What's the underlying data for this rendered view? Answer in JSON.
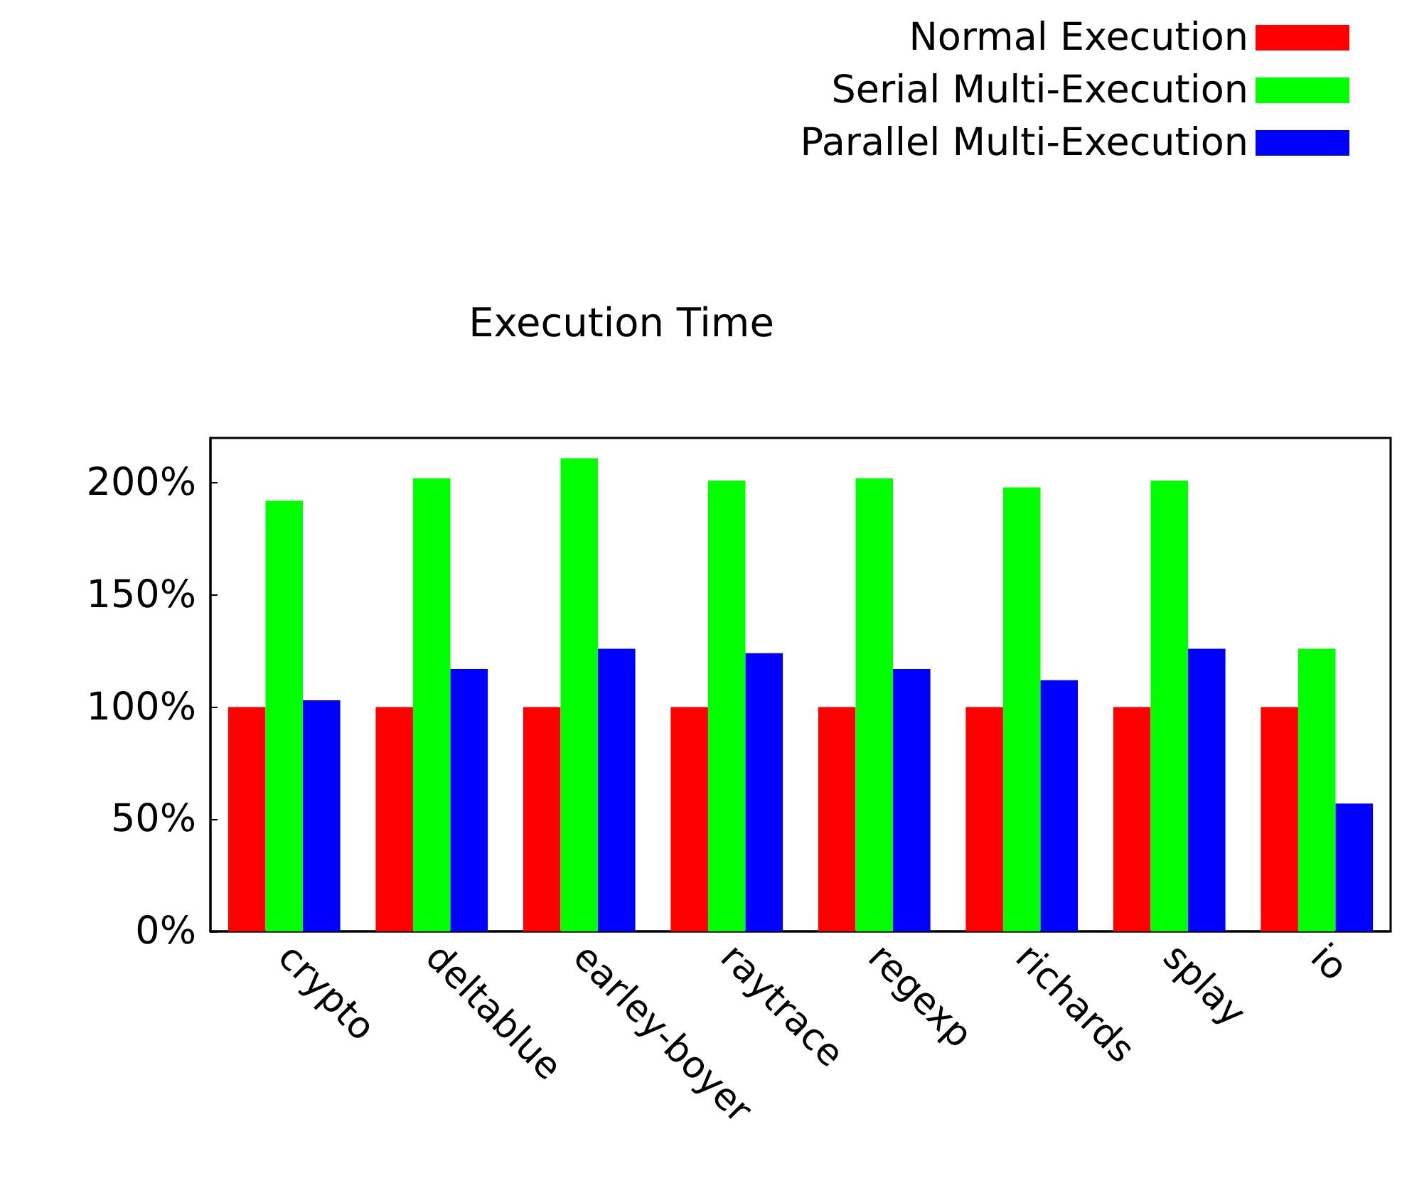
{
  "chart_data": {
    "type": "bar",
    "title": "Execution Time",
    "categories": [
      "crypto",
      "deltablue",
      "earley-boyer",
      "raytrace",
      "regexp",
      "richards",
      "splay",
      "io"
    ],
    "series": [
      {
        "name": "Normal Execution",
        "color": "#ff0000",
        "values": [
          100,
          100,
          100,
          100,
          100,
          100,
          100,
          100
        ]
      },
      {
        "name": "Serial Multi-Execution",
        "color": "#00ff00",
        "values": [
          192,
          202,
          211,
          201,
          202,
          198,
          201,
          126
        ]
      },
      {
        "name": "Parallel Multi-Execution",
        "color": "#0000ff",
        "values": [
          103,
          117,
          126,
          124,
          117,
          112,
          126,
          57
        ]
      }
    ],
    "ylim": [
      0,
      220
    ],
    "yticks": [
      {
        "value": 0,
        "label": "0%"
      },
      {
        "value": 50,
        "label": "50%"
      },
      {
        "value": 100,
        "label": "100%"
      },
      {
        "value": 150,
        "label": "150%"
      },
      {
        "value": 200,
        "label": "200%"
      }
    ],
    "grid": false,
    "legend": "top right"
  }
}
